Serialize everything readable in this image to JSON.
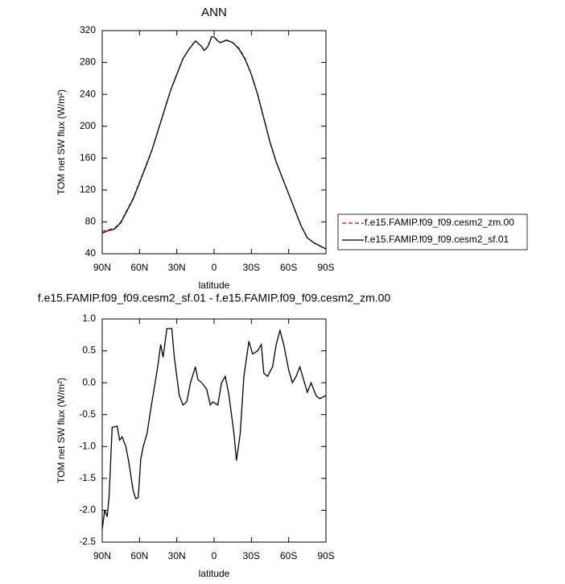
{
  "chart_data": [
    {
      "type": "line",
      "title": "ANN",
      "xlabel": "latitude",
      "ylabel": "TOM net SW flux (W/m²)",
      "x": [
        90,
        85,
        80,
        75,
        70,
        65,
        60,
        55,
        50,
        45,
        40,
        35,
        30,
        25,
        20,
        15,
        10,
        8,
        5,
        2,
        0,
        -3,
        -5,
        -10,
        -15,
        -20,
        -25,
        -30,
        -35,
        -40,
        -45,
        -50,
        -55,
        -60,
        -65,
        -70,
        -75,
        -80,
        -85,
        -90
      ],
      "series": [
        {
          "name": "f.e15.FAMIP.f09_f09.cesm2_zm.00",
          "color": "#dd0000",
          "dashed": true,
          "values": [
            68,
            70,
            72,
            80,
            95,
            110,
            130,
            150,
            170,
            195,
            220,
            245,
            265,
            285,
            297,
            307,
            300,
            295,
            300,
            312,
            312,
            307,
            305,
            308,
            305,
            298,
            285,
            265,
            240,
            210,
            180,
            155,
            135,
            115,
            95,
            75,
            60,
            54,
            50,
            46
          ]
        },
        {
          "name": "f.e15.FAMIP.f09_f09.cesm2_sf.01",
          "color": "#000000",
          "dashed": false,
          "values": [
            66,
            69,
            71,
            79,
            94,
            109,
            129,
            149,
            170,
            195,
            220,
            245,
            265,
            285,
            297,
            307,
            300,
            295,
            300,
            312,
            312,
            307,
            305,
            308,
            305,
            297,
            284,
            265,
            240,
            210,
            180,
            155,
            135,
            115,
            95,
            75,
            60,
            54,
            50,
            46
          ]
        }
      ],
      "xlim": [
        90,
        -90
      ],
      "xticks": [
        {
          "value": 90,
          "label": "90N"
        },
        {
          "value": 60,
          "label": "60N"
        },
        {
          "value": 30,
          "label": "30N"
        },
        0,
        {
          "value": -30,
          "label": "30S"
        },
        {
          "value": -60,
          "label": "60S"
        },
        {
          "value": -90,
          "label": "90S"
        }
      ],
      "ylim": [
        40,
        320
      ],
      "yticks": [
        40,
        80,
        120,
        160,
        200,
        240,
        280,
        320
      ],
      "legend": "right"
    },
    {
      "type": "line",
      "title": "f.e15.FAMIP.f09_f09.cesm2_sf.01 - f.e15.FAMIP.f09_f09.cesm2_zm.00",
      "xlabel": "latitude",
      "ylabel": "TOM net SW flux (W/m²)",
      "x": [
        90,
        88,
        86,
        84.5,
        82,
        78,
        76,
        74,
        71,
        69,
        65,
        63,
        61,
        59,
        57,
        54,
        50,
        47,
        45,
        43,
        41,
        38,
        34,
        32,
        28,
        25,
        22,
        19,
        15,
        13,
        10,
        6,
        3,
        1,
        -3,
        -6,
        -9,
        -12,
        -16,
        -18,
        -21,
        -24,
        -28,
        -31,
        -35,
        -38,
        -40,
        -43,
        -47,
        -50,
        -53,
        -56,
        -60,
        -63,
        -66,
        -69,
        -72,
        -75,
        -78,
        -82,
        -85,
        -90
      ],
      "values": [
        -2.3,
        -2.0,
        -2.1,
        -1.8,
        -0.7,
        -0.68,
        -0.9,
        -0.85,
        -1.0,
        -1.2,
        -1.7,
        -1.82,
        -1.8,
        -1.2,
        -1.0,
        -0.8,
        -0.3,
        0.05,
        0.3,
        0.6,
        0.4,
        0.85,
        0.85,
        0.4,
        -0.2,
        -0.35,
        -0.3,
        0.0,
        0.25,
        0.05,
        0.0,
        -0.1,
        -0.35,
        -0.3,
        -0.35,
        0.0,
        0.1,
        -0.2,
        -0.8,
        -1.22,
        -0.8,
        0.1,
        0.65,
        0.45,
        0.5,
        0.6,
        0.15,
        0.1,
        0.25,
        0.6,
        0.82,
        0.6,
        0.2,
        0.0,
        0.1,
        0.25,
        0.05,
        -0.15,
        0.0,
        -0.2,
        -0.25,
        -0.2
      ],
      "color": "#000000",
      "xlim": [
        90,
        -90
      ],
      "xticks": [
        {
          "value": 90,
          "label": "90N"
        },
        {
          "value": 60,
          "label": "60N"
        },
        {
          "value": 30,
          "label": "30N"
        },
        0,
        {
          "value": -30,
          "label": "30S"
        },
        {
          "value": -60,
          "label": "60S"
        },
        {
          "value": -90,
          "label": "90S"
        }
      ],
      "ylim": [
        -2.5,
        1
      ],
      "yticks": [
        {
          "value": -2.5,
          "label": "-2.5"
        },
        {
          "value": -2,
          "label": "-2.0"
        },
        {
          "value": -1.5,
          "label": "-1.5"
        },
        {
          "value": -1,
          "label": "-1.0"
        },
        {
          "value": -0.5,
          "label": "-0.5"
        },
        {
          "value": 0,
          "label": "0.0"
        },
        0.5,
        {
          "value": 1,
          "label": "1.0"
        }
      ]
    }
  ]
}
